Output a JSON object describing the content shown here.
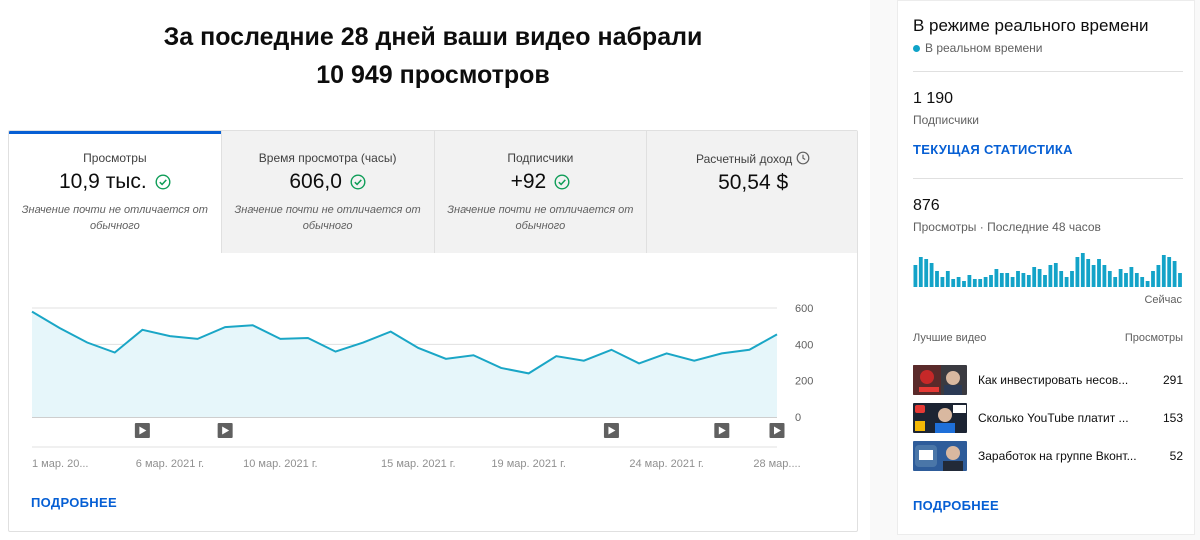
{
  "headline": {
    "line1": "За последние 28 дней ваши видео набрали",
    "line2": "10 949 просмотров"
  },
  "tabs": [
    {
      "title": "Просмотры",
      "value": "10,9 тыс.",
      "note": "Значение почти не отличается от обычного",
      "status_icon": "check-circle-icon",
      "active": true
    },
    {
      "title": "Время просмотра (часы)",
      "value": "606,0",
      "note": "Значение почти не отличается от обычного",
      "status_icon": "check-circle-icon",
      "active": false
    },
    {
      "title": "Подписчики",
      "value": "+92",
      "note": "Значение почти не отличается от обычного",
      "status_icon": "check-circle-icon",
      "active": false
    },
    {
      "title": "Расчетный доход",
      "value": "50,54 $",
      "note": "",
      "status_icon": "clock-icon",
      "active": false
    }
  ],
  "chart_data": {
    "type": "area",
    "title": "",
    "xlabel": "",
    "ylabel": "",
    "ylim": [
      0,
      600
    ],
    "yticks": [
      "600",
      "400",
      "200",
      "0"
    ],
    "xtick_labels": [
      "1 мар. 20...",
      "6 мар. 2021 г.",
      "10 мар. 2021 г.",
      "15 мар. 2021 г.",
      "19 мар. 2021 г.",
      "24 мар. 2021 г.",
      "28 мар...."
    ],
    "xtick_days": [
      1,
      6,
      10,
      15,
      19,
      24,
      28
    ],
    "x_days": [
      1,
      2,
      3,
      4,
      5,
      6,
      7,
      8,
      9,
      10,
      11,
      12,
      13,
      14,
      15,
      16,
      17,
      18,
      19,
      20,
      21,
      22,
      23,
      24,
      25,
      26,
      27,
      28
    ],
    "values": [
      580,
      490,
      410,
      355,
      480,
      445,
      430,
      495,
      505,
      430,
      435,
      360,
      410,
      470,
      380,
      320,
      340,
      270,
      240,
      335,
      310,
      370,
      295,
      350,
      310,
      350,
      370,
      455
    ],
    "video_marker_days": [
      5,
      8,
      22,
      26,
      28
    ],
    "grid": true,
    "colors": {
      "line": "#1aa6c6",
      "fill": "#e6f6fa",
      "grid": "#e0e0e0",
      "marker": "#606060"
    }
  },
  "more_label": "ПОДРОБНЕЕ",
  "realtime": {
    "title": "В режиме реального времени",
    "live_label": "В реальном времени",
    "live_color": "#0fa3c8",
    "subscribers_value": "1 190",
    "subscribers_label": "Подписчики",
    "current_stats_label": "ТЕКУЩАЯ СТАТИСТИКА",
    "views_value": "876",
    "views_label": "Просмотры · Последние 48 часов",
    "hourly_views": [
      55,
      75,
      70,
      60,
      40,
      25,
      40,
      20,
      25,
      15,
      30,
      20,
      20,
      25,
      30,
      45,
      35,
      35,
      25,
      40,
      35,
      30,
      50,
      45,
      30,
      55,
      60,
      40,
      25,
      40,
      75,
      85,
      70,
      55,
      70,
      55,
      40,
      25,
      45,
      35,
      50,
      35,
      25,
      15,
      40,
      55,
      80,
      75,
      65,
      35
    ],
    "now_label": "Сейчас",
    "top_videos_label": "Лучшие видео",
    "views_col_label": "Просмотры",
    "videos": [
      {
        "title": "Как инвестировать несов...",
        "views": "291"
      },
      {
        "title": "Сколько YouTube платит ...",
        "views": "153"
      },
      {
        "title": "Заработок на группе Вконт...",
        "views": "52"
      }
    ],
    "more_label": "ПОДРОБНЕЕ"
  }
}
